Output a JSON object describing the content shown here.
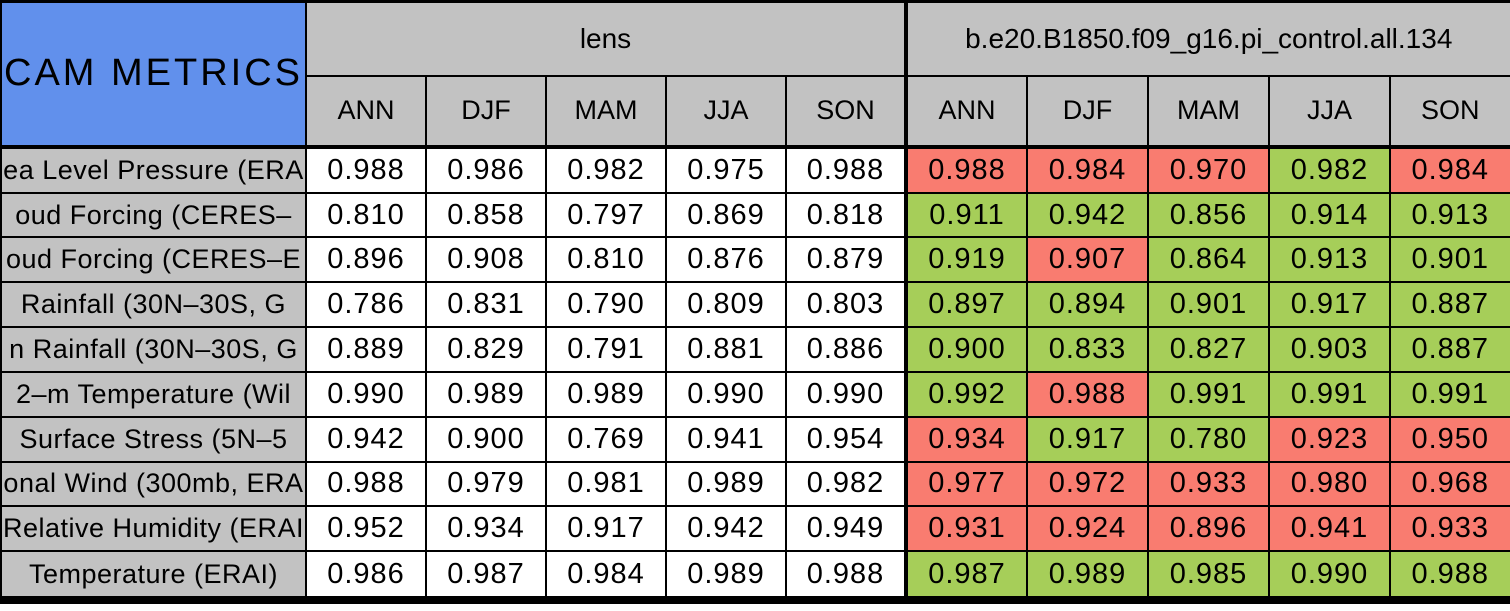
{
  "colors": {
    "title_bg_blue": "#6190EC",
    "header_gray": "#C2C2C2",
    "better_green": "#A6CE59",
    "worse_red": "#F97C70",
    "lens_cell_white": "#FFFFFF",
    "border_black": "#000000"
  },
  "chart_data": {
    "type": "table",
    "title": "CAM METRICS",
    "column_groups": [
      {
        "label": "lens"
      },
      {
        "label": "b.e20.B1850.f09_g16.pi_control.all.134"
      }
    ],
    "season_columns": [
      "ANN",
      "DJF",
      "MAM",
      "JJA",
      "SON"
    ],
    "rows": [
      {
        "label": "ea Level Pressure (ERA",
        "lens": [
          "0.988",
          "0.986",
          "0.982",
          "0.975",
          "0.988"
        ],
        "model": [
          "0.988",
          "0.984",
          "0.970",
          "0.982",
          "0.984"
        ],
        "model_cell_colors": [
          "red",
          "red",
          "red",
          "green",
          "red"
        ]
      },
      {
        "label": "oud Forcing (CERES–",
        "lens": [
          "0.810",
          "0.858",
          "0.797",
          "0.869",
          "0.818"
        ],
        "model": [
          "0.911",
          "0.942",
          "0.856",
          "0.914",
          "0.913"
        ],
        "model_cell_colors": [
          "green",
          "green",
          "green",
          "green",
          "green"
        ]
      },
      {
        "label": "oud Forcing (CERES–E",
        "lens": [
          "0.896",
          "0.908",
          "0.810",
          "0.876",
          "0.879"
        ],
        "model": [
          "0.919",
          "0.907",
          "0.864",
          "0.913",
          "0.901"
        ],
        "model_cell_colors": [
          "green",
          "red",
          "green",
          "green",
          "green"
        ]
      },
      {
        "label": "Rainfall (30N–30S, G",
        "lens": [
          "0.786",
          "0.831",
          "0.790",
          "0.809",
          "0.803"
        ],
        "model": [
          "0.897",
          "0.894",
          "0.901",
          "0.917",
          "0.887"
        ],
        "model_cell_colors": [
          "green",
          "green",
          "green",
          "green",
          "green"
        ]
      },
      {
        "label": "n Rainfall (30N–30S, G",
        "lens": [
          "0.889",
          "0.829",
          "0.791",
          "0.881",
          "0.886"
        ],
        "model": [
          "0.900",
          "0.833",
          "0.827",
          "0.903",
          "0.887"
        ],
        "model_cell_colors": [
          "green",
          "green",
          "green",
          "green",
          "green"
        ]
      },
      {
        "label": "2–m Temperature (Wil",
        "lens": [
          "0.990",
          "0.989",
          "0.989",
          "0.990",
          "0.990"
        ],
        "model": [
          "0.992",
          "0.988",
          "0.991",
          "0.991",
          "0.991"
        ],
        "model_cell_colors": [
          "green",
          "red",
          "green",
          "green",
          "green"
        ]
      },
      {
        "label": "Surface Stress (5N–5",
        "lens": [
          "0.942",
          "0.900",
          "0.769",
          "0.941",
          "0.954"
        ],
        "model": [
          "0.934",
          "0.917",
          "0.780",
          "0.923",
          "0.950"
        ],
        "model_cell_colors": [
          "red",
          "green",
          "green",
          "red",
          "red"
        ]
      },
      {
        "label": "onal Wind (300mb, ERA",
        "lens": [
          "0.988",
          "0.979",
          "0.981",
          "0.989",
          "0.982"
        ],
        "model": [
          "0.977",
          "0.972",
          "0.933",
          "0.980",
          "0.968"
        ],
        "model_cell_colors": [
          "red",
          "red",
          "red",
          "red",
          "red"
        ]
      },
      {
        "label": "Relative Humidity (ERAI",
        "lens": [
          "0.952",
          "0.934",
          "0.917",
          "0.942",
          "0.949"
        ],
        "model": [
          "0.931",
          "0.924",
          "0.896",
          "0.941",
          "0.933"
        ],
        "model_cell_colors": [
          "red",
          "red",
          "red",
          "red",
          "red"
        ]
      },
      {
        "label": "Temperature (ERAI)",
        "lens": [
          "0.986",
          "0.987",
          "0.984",
          "0.989",
          "0.988"
        ],
        "model": [
          "0.987",
          "0.989",
          "0.985",
          "0.990",
          "0.988"
        ],
        "model_cell_colors": [
          "green",
          "green",
          "green",
          "green",
          "green"
        ]
      }
    ]
  }
}
